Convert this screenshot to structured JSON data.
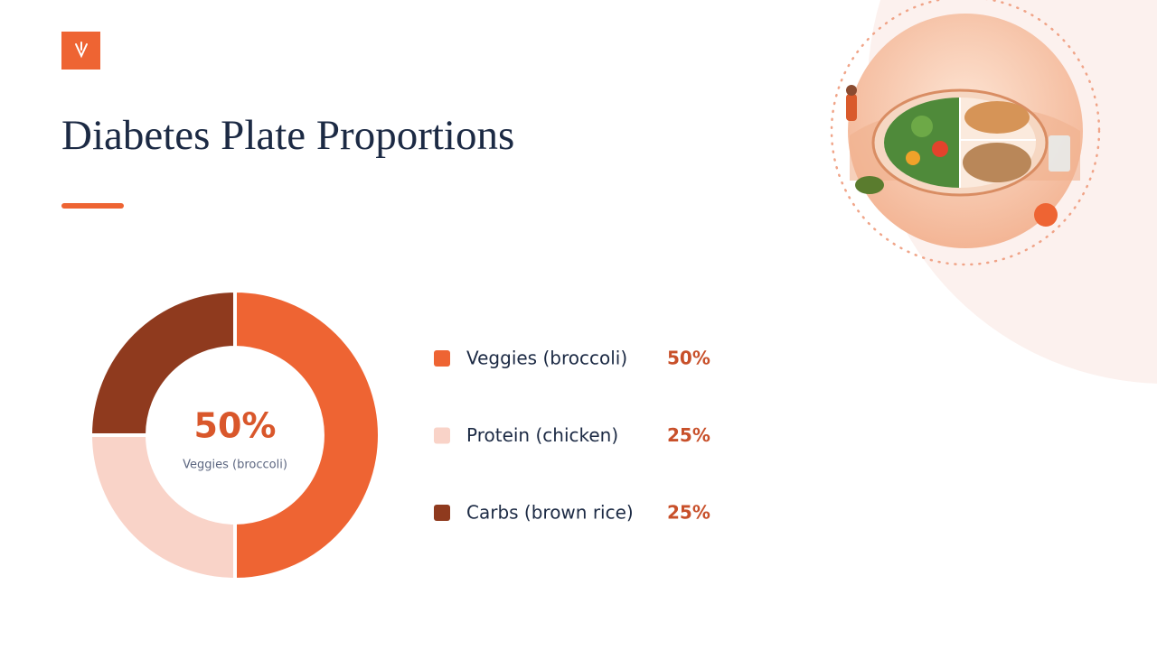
{
  "chart_data": {
    "type": "donut",
    "title": "Diabetes Plate Proportions",
    "categories": [
      "Veggies (broccoli)",
      "Protein (chicken)",
      "Carbs (brown rice)"
    ],
    "values": [
      50,
      25,
      25
    ],
    "value_labels": [
      "50%",
      "25%",
      "25%"
    ],
    "colors": [
      "#ee6433",
      "#f9d3c8",
      "#8f3a1e"
    ]
  }
}
